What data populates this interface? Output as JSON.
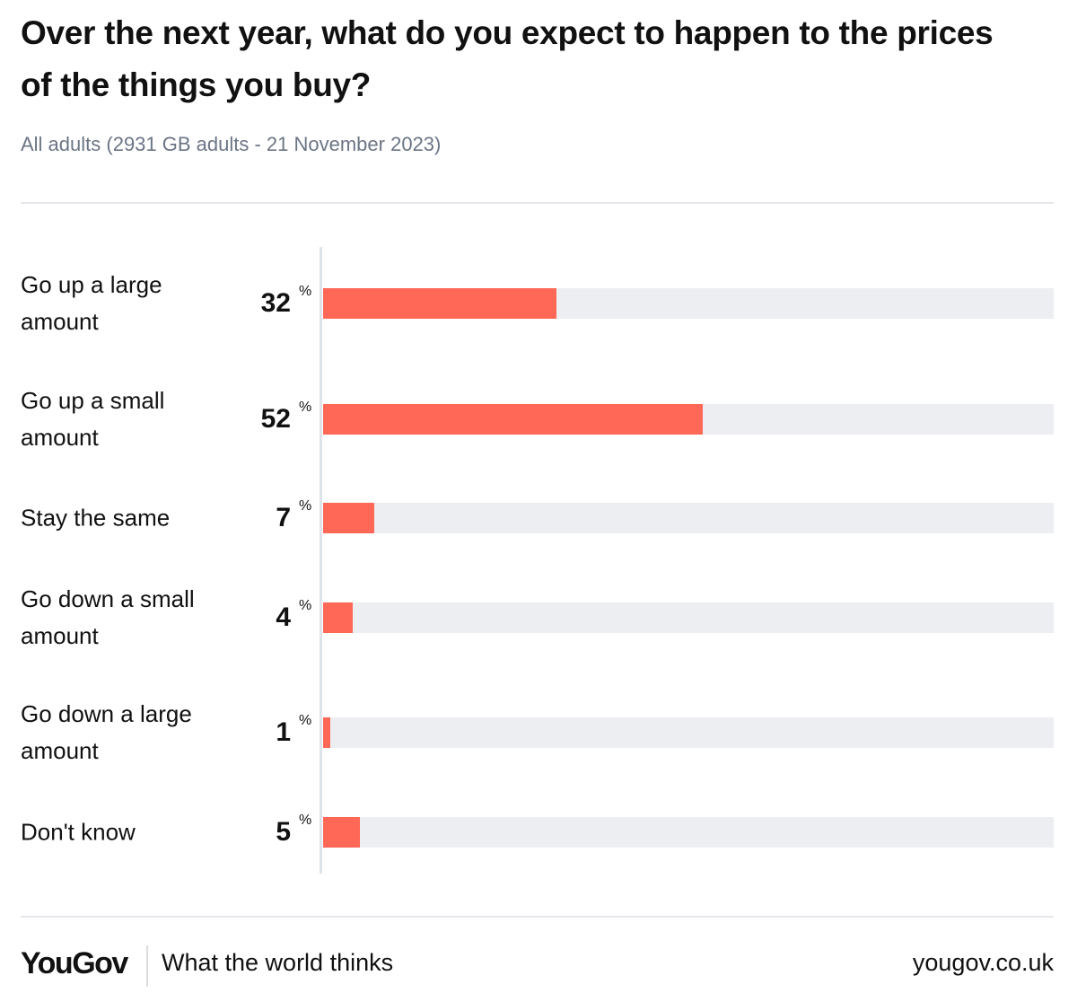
{
  "chart_data": {
    "type": "bar",
    "orientation": "horizontal",
    "title": "Over the next year, what do you expect to happen to the prices of the things you buy?",
    "subtitle": "All adults (2931 GB adults - 21 November 2023)",
    "categories": [
      "Go up a large amount",
      "Go up a small amount",
      "Stay the same",
      "Go down a small amount",
      "Go down a large amount",
      "Don't know"
    ],
    "values": [
      32,
      52,
      7,
      4,
      1,
      5
    ],
    "unit": "%",
    "xlim": [
      0,
      100
    ],
    "bar_color": "#ff6757",
    "track_color": "#eceef2"
  },
  "footer": {
    "logo": "YouGov",
    "tagline": "What the world thinks",
    "url": "yougov.co.uk"
  }
}
